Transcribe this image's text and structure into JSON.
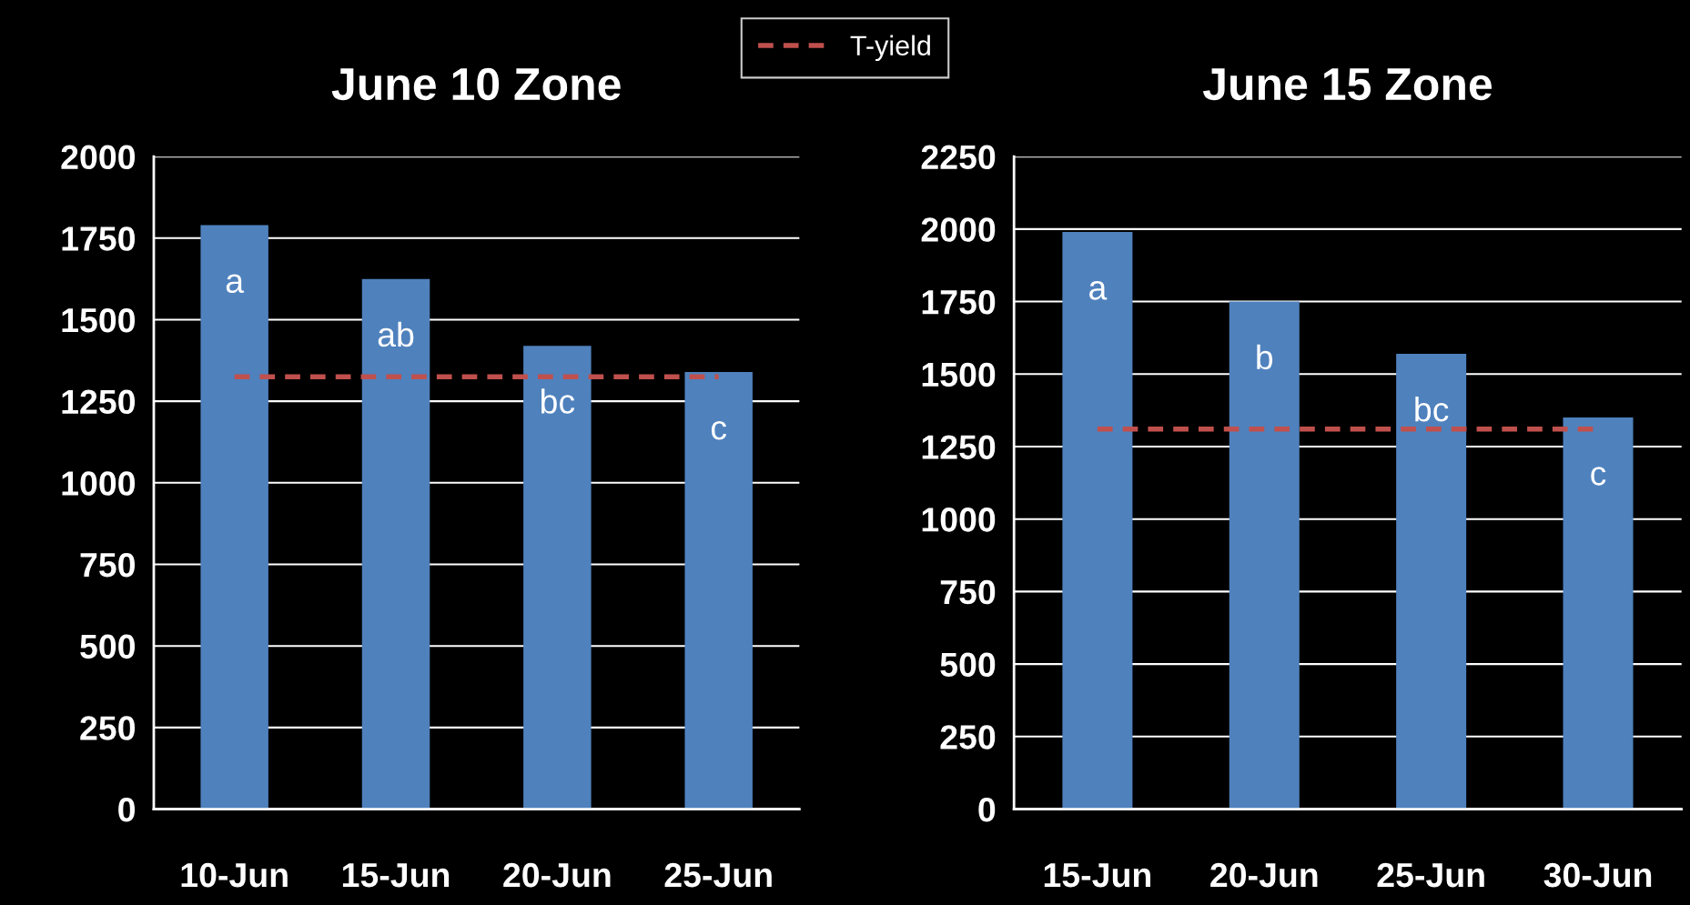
{
  "chart_data": [
    {
      "type": "bar",
      "title": "June 10 Zone",
      "categories": [
        "10-Jun",
        "15-Jun",
        "20-Jun",
        "25-Jun"
      ],
      "series": [
        {
          "color": "#4f81bd",
          "values": [
            1790,
            1625,
            1420,
            1340
          ]
        },
        {
          "type": "line",
          "name": "T-yield",
          "color": "#c0504d",
          "line_style": "dashed",
          "values": [
            1325,
            1325,
            1325,
            1325
          ]
        }
      ],
      "ylim": [
        0,
        2000
      ],
      "yticks": [
        0,
        250,
        500,
        750,
        1000,
        1250,
        1500,
        1750,
        2000
      ],
      "grid": "y",
      "legend": "top",
      "annotations": [
        "a",
        "ab",
        "bc",
        "c"
      ]
    },
    {
      "type": "bar",
      "title": "June 15 Zone",
      "categories": [
        "15-Jun",
        "20-Jun",
        "25-Jun",
        "30-Jun"
      ],
      "series": [
        {
          "color": "#4f81bd",
          "values": [
            1990,
            1750,
            1570,
            1350
          ]
        },
        {
          "type": "line",
          "color": "#c0504d",
          "line_style": "dashed",
          "values": [
            1310,
            1310,
            1310,
            1310
          ]
        }
      ],
      "ylim": [
        0,
        2250
      ],
      "yticks": [
        0,
        250,
        500,
        750,
        1000,
        1250,
        1500,
        1750,
        2000,
        2250
      ],
      "grid": "y",
      "annotations": [
        "a",
        "b",
        "bc",
        "c"
      ]
    }
  ]
}
